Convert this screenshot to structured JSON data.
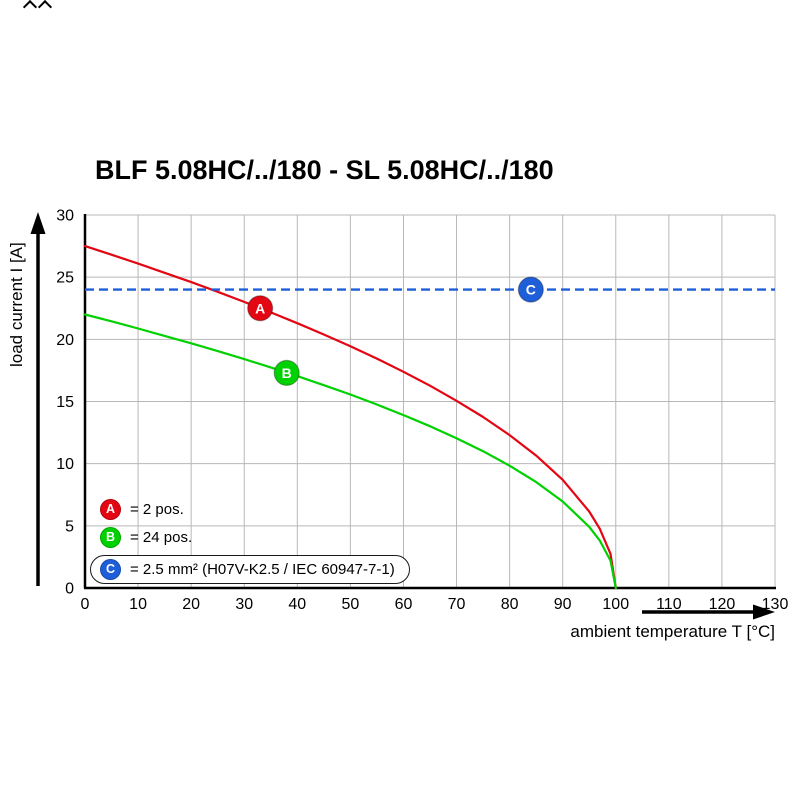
{
  "title": "BLF 5.08HC/../180 - SL 5.08HC/../180",
  "colors": {
    "background": "#ffffff",
    "grid": "#b8b8b8",
    "axis": "#000000",
    "series_a_red": "#e30613",
    "series_b_green": "#00d100",
    "series_c_blue": "#1e5fd9"
  },
  "chart_data": {
    "type": "line",
    "title": "BLF 5.08HC/../180 - SL 5.08HC/../180",
    "xlabel": "ambient temperature T [°C]",
    "ylabel": "load current I [A]",
    "xlim": [
      0,
      130
    ],
    "ylim": [
      0,
      30
    ],
    "x_ticks": [
      0,
      10,
      20,
      30,
      40,
      50,
      60,
      70,
      80,
      90,
      100,
      110,
      120,
      130
    ],
    "y_ticks": [
      0,
      5,
      10,
      15,
      20,
      25,
      30
    ],
    "grid": true,
    "legend_position": "inside bottom-left",
    "series": [
      {
        "name": "A",
        "label": "2 pos.",
        "color": "#e30613",
        "style": "solid",
        "points": [
          [
            0,
            27.5
          ],
          [
            5,
            26.81
          ],
          [
            10,
            26.09
          ],
          [
            15,
            25.35
          ],
          [
            20,
            24.6
          ],
          [
            25,
            23.82
          ],
          [
            30,
            23.01
          ],
          [
            35,
            22.17
          ],
          [
            40,
            21.3
          ],
          [
            45,
            20.39
          ],
          [
            50,
            19.45
          ],
          [
            55,
            18.45
          ],
          [
            60,
            17.39
          ],
          [
            65,
            16.27
          ],
          [
            70,
            15.06
          ],
          [
            75,
            13.75
          ],
          [
            80,
            12.3
          ],
          [
            85,
            10.65
          ],
          [
            90,
            8.7
          ],
          [
            95,
            6.15
          ],
          [
            97,
            4.76
          ],
          [
            99,
            2.75
          ],
          [
            100,
            0
          ]
        ]
      },
      {
        "name": "B",
        "label": "24 pos.",
        "color": "#00d100",
        "style": "solid",
        "points": [
          [
            0,
            22
          ],
          [
            5,
            21.45
          ],
          [
            10,
            20.87
          ],
          [
            15,
            20.28
          ],
          [
            20,
            19.68
          ],
          [
            25,
            19.05
          ],
          [
            30,
            18.41
          ],
          [
            35,
            17.74
          ],
          [
            40,
            17.04
          ],
          [
            45,
            16.31
          ],
          [
            50,
            15.56
          ],
          [
            55,
            14.76
          ],
          [
            60,
            13.91
          ],
          [
            65,
            13.01
          ],
          [
            70,
            12.05
          ],
          [
            75,
            11.0
          ],
          [
            80,
            9.84
          ],
          [
            85,
            8.52
          ],
          [
            90,
            6.96
          ],
          [
            95,
            4.92
          ],
          [
            97,
            3.81
          ],
          [
            99,
            2.2
          ],
          [
            100,
            0
          ]
        ]
      },
      {
        "name": "C",
        "label": "2.5 mm² (H07V-K2.5 / IEC 60947-7-1)",
        "color": "#1e5fd9",
        "style": "dashed-horizontal",
        "y": 24
      }
    ],
    "markers": [
      {
        "letter": "A",
        "x": 33,
        "y": 22.5,
        "color": "#e30613"
      },
      {
        "letter": "B",
        "x": 38,
        "y": 17.3,
        "color": "#00d100"
      },
      {
        "letter": "C",
        "x": 84,
        "y": 24,
        "color": "#1e5fd9"
      }
    ],
    "legend": [
      {
        "letter": "A",
        "text": "= 2 pos.",
        "color": "#e30613",
        "boxed": false
      },
      {
        "letter": "B",
        "text": "= 24 pos.",
        "color": "#00d100",
        "boxed": false
      },
      {
        "letter": "C",
        "text": "= 2.5 mm² (H07V-K2.5 / IEC 60947-7-1)",
        "color": "#1e5fd9",
        "boxed": true
      }
    ]
  }
}
